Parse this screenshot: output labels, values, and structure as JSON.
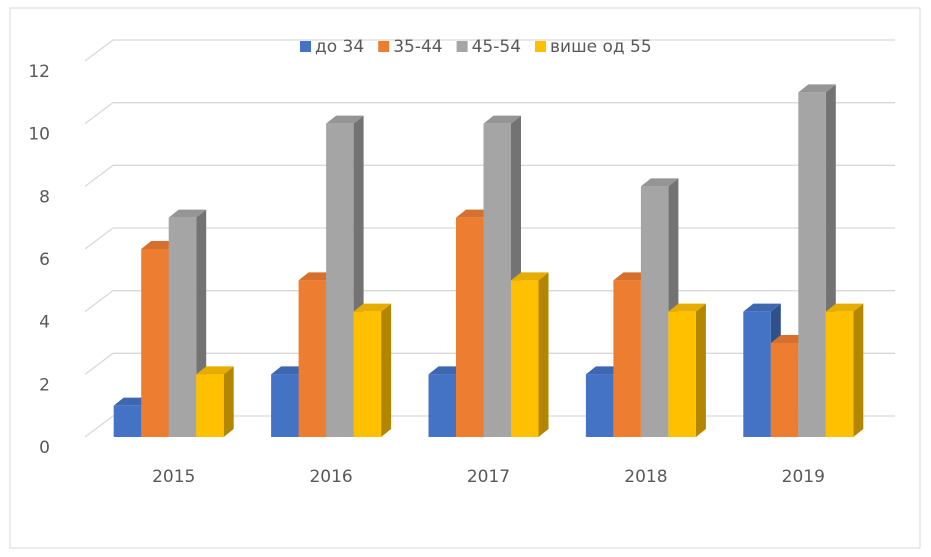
{
  "chart_data": {
    "type": "bar3d",
    "categories": [
      "2015",
      "2016",
      "2017",
      "2018",
      "2019"
    ],
    "series": [
      {
        "name": "до 34",
        "color": "#4472c4",
        "values": [
          1,
          2,
          2,
          2,
          4
        ]
      },
      {
        "name": "35-44",
        "color": "#ed7d31",
        "values": [
          6,
          5,
          7,
          5,
          3
        ]
      },
      {
        "name": "45-54",
        "color": "#a5a5a5",
        "values": [
          7,
          10,
          10,
          8,
          11
        ]
      },
      {
        "name": "више од 55",
        "color": "#ffc000",
        "values": [
          2,
          4,
          5,
          4,
          4
        ]
      }
    ],
    "ylim": [
      0,
      12
    ],
    "yticks": [
      0,
      2,
      4,
      6,
      8,
      10,
      12
    ],
    "grid": true,
    "legend": "top"
  }
}
